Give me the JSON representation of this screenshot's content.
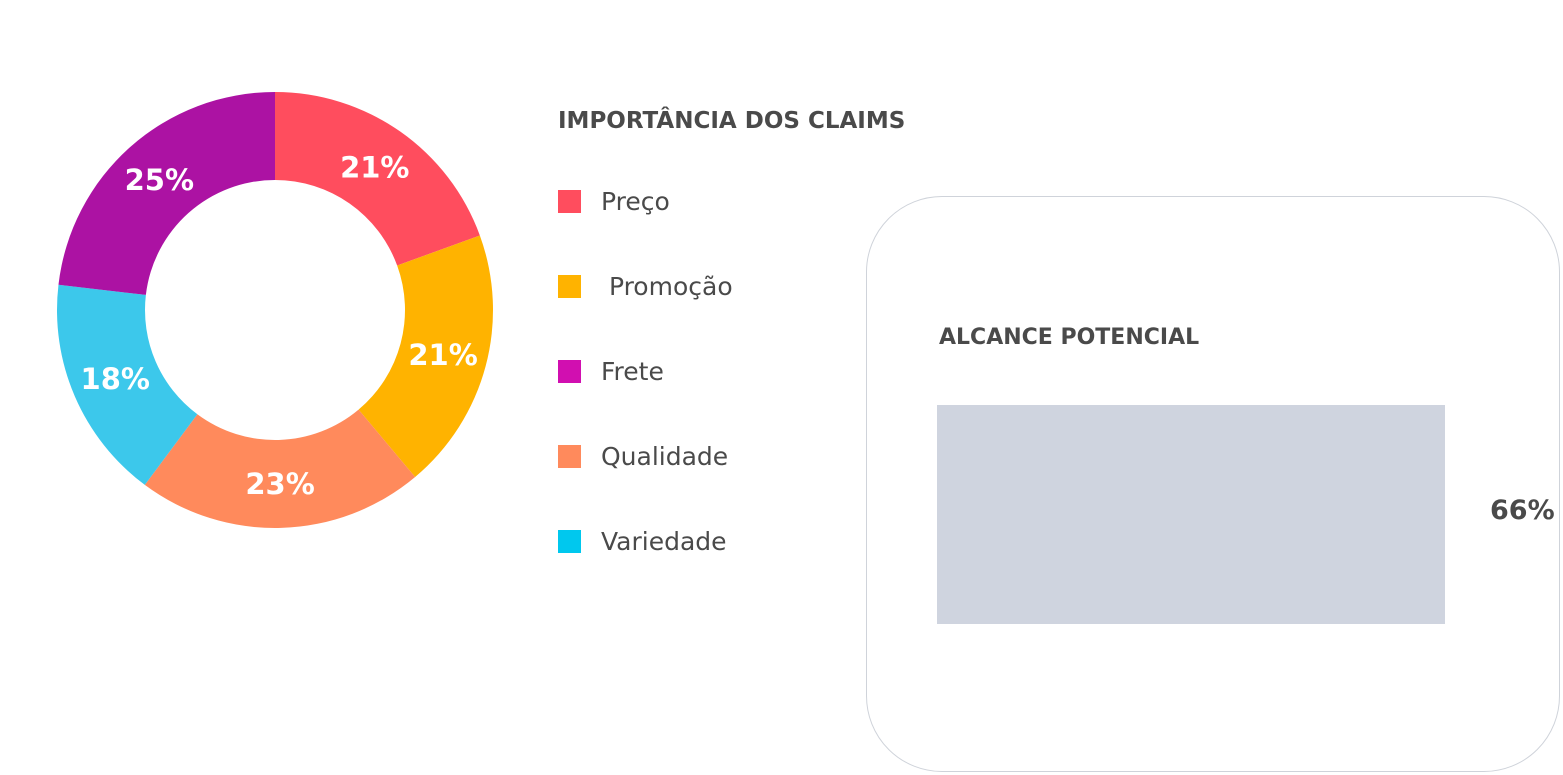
{
  "chart_data": [
    {
      "type": "pie",
      "title": "IMPORTÂNCIA DOS CLAIMS",
      "categories": [
        "Preço",
        "Promoção",
        "Frete",
        "Qualidade",
        "Variedade"
      ],
      "values": [
        21,
        21,
        25,
        23,
        18
      ],
      "value_labels": [
        "21%",
        "21%",
        "25%",
        "23%",
        "18%"
      ],
      "slice_order": [
        "Preço",
        "Promoção",
        "Qualidade",
        "Variedade",
        "Frete"
      ],
      "colors": {
        "Preço": "#ff4d5e",
        "Promoção": "#ffb300",
        "Frete": "#ac12a3",
        "Qualidade": "#ff8a5c",
        "Variedade": "#3cc8eb"
      },
      "legend_colors": {
        "Preço": "#ff4d5e",
        "Promoção": "#ffb300",
        "Frete": "#d10fb0",
        "Qualidade": "#ff8a5c",
        "Variedade": "#00c8ee"
      },
      "legend_labels": [
        "Preço",
        " Promoção",
        "Frete",
        "Qualidade",
        "Variedade"
      ],
      "donut": true,
      "legend_position": "right"
    },
    {
      "type": "bar",
      "title": "ALCANCE POTENCIAL",
      "values": [
        66
      ],
      "value_label": "66%",
      "fill_fraction": 1.0,
      "color": "#cfd4df"
    }
  ]
}
